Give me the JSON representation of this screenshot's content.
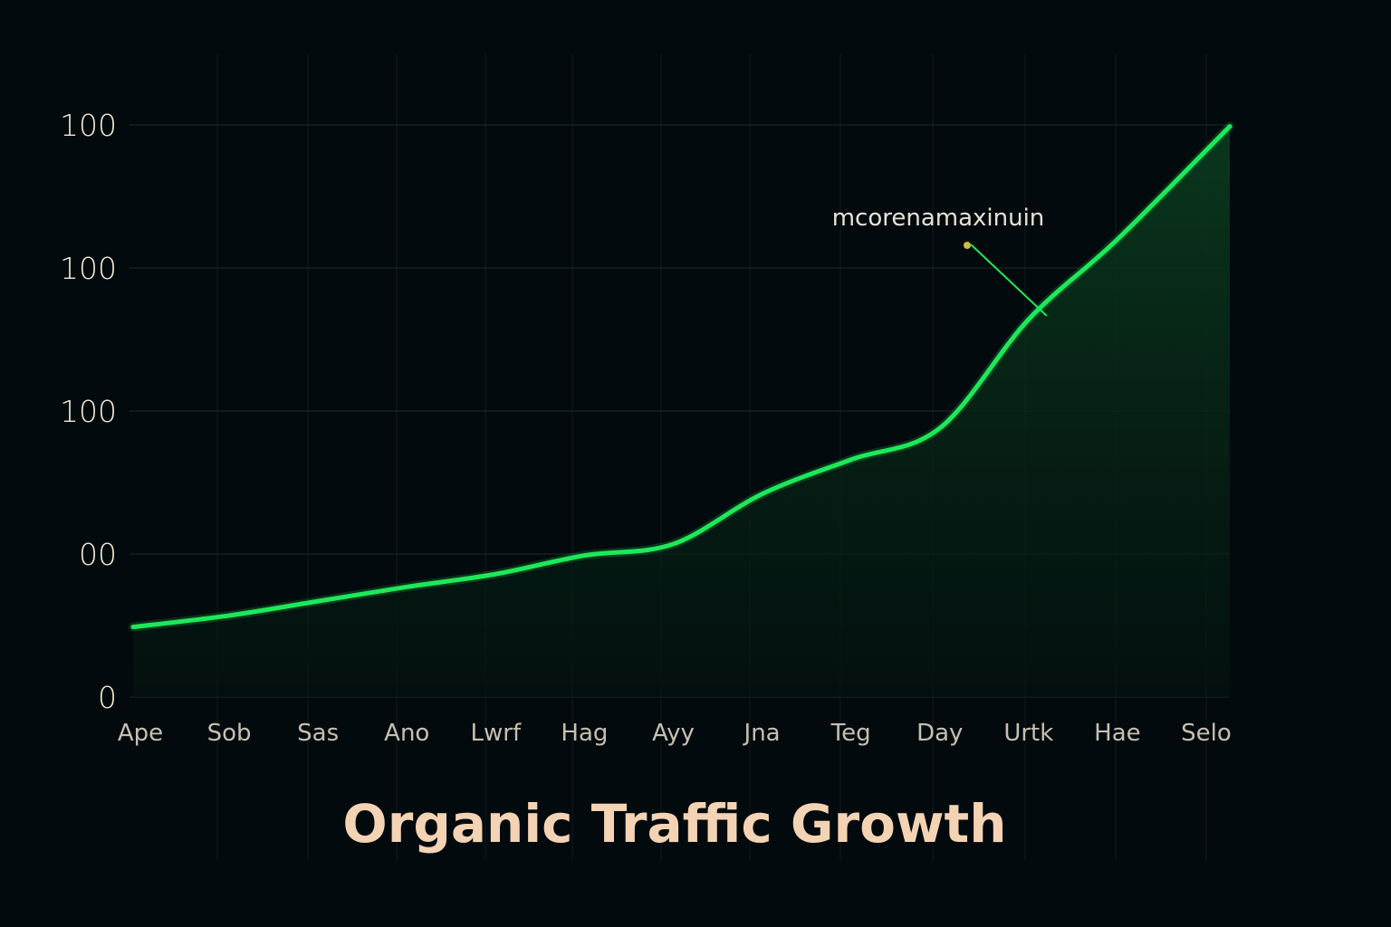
{
  "colors": {
    "background": "#030a0d",
    "line": "#1ee85a",
    "area_top": "#0a3a1e",
    "area_bottom": "#041410",
    "grid": "#1d2a2a",
    "title": "#f3d3b3",
    "tick_text": "#f1ead6",
    "annotation_text": "#e6e2d8",
    "annotation_marker": "#c8c040"
  },
  "chart_data": {
    "type": "area",
    "title": "Organic Traffic Growth",
    "xlabel": "",
    "ylabel": "",
    "categories": [
      "Ape",
      "Sob",
      "Sas",
      "Ano",
      "Lwrf",
      "Hag",
      "Ayy",
      "Jna",
      "Teg",
      "Day",
      "Urtk",
      "Hae",
      "Selo"
    ],
    "y_tick_labels": [
      "0",
      "00",
      "100",
      "100",
      "100"
    ],
    "ylim": [
      0,
      400
    ],
    "grid": true,
    "series": [
      {
        "values": [
          49,
          57,
          67,
          77,
          86,
          99,
          107,
          142,
          166,
          188,
          264,
          320,
          399
        ]
      }
    ],
    "annotation": {
      "text": "mcorenamaxinuin",
      "category": "Urtk"
    }
  }
}
